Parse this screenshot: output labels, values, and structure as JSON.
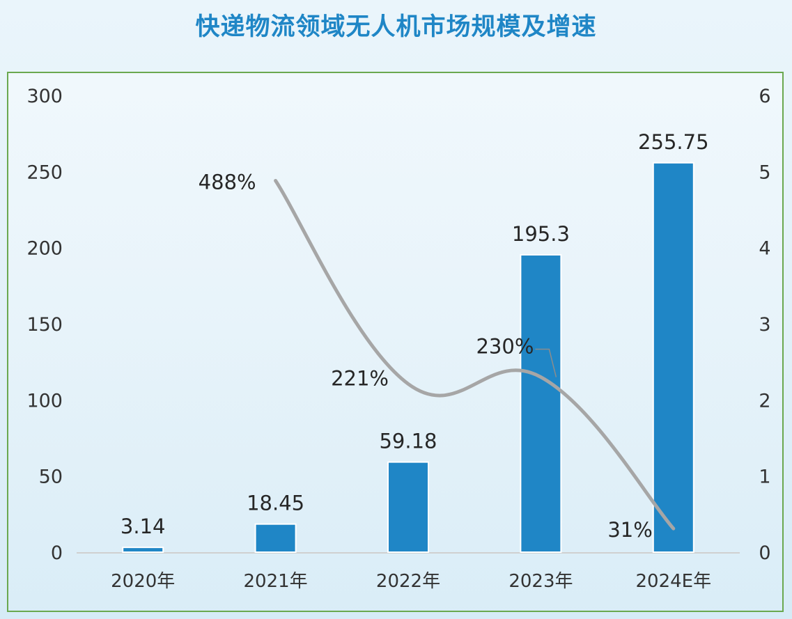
{
  "title": "快递物流领域无人机市场规模及增速",
  "chart_data": {
    "type": "bar",
    "title": "快递物流领域无人机市场规模及增速",
    "categories": [
      "2020年",
      "2021年",
      "2022年",
      "2023年",
      "2024E年"
    ],
    "bar_series": {
      "values": [
        3.14,
        18.45,
        59.18,
        195.3,
        255.75
      ],
      "labels": [
        "3.14",
        "18.45",
        "59.18",
        "195.3",
        "255.75"
      ],
      "color": "#1f86c6"
    },
    "line_series": {
      "values": [
        null,
        4.88,
        2.21,
        2.3,
        0.31
      ],
      "labels": [
        "",
        "488%",
        "221%",
        "230%",
        "31%"
      ],
      "color": "#a6a6a6",
      "axis": "right",
      "smooth": true
    },
    "y_left": {
      "min": 0,
      "max": 300,
      "ticks": [
        "0",
        "50",
        "100",
        "150",
        "200",
        "250",
        "300"
      ]
    },
    "y_right": {
      "min": 0,
      "max": 6,
      "ticks": [
        "0",
        "1",
        "2",
        "3",
        "4",
        "5",
        "6"
      ]
    },
    "grid": false,
    "legend": "none"
  }
}
